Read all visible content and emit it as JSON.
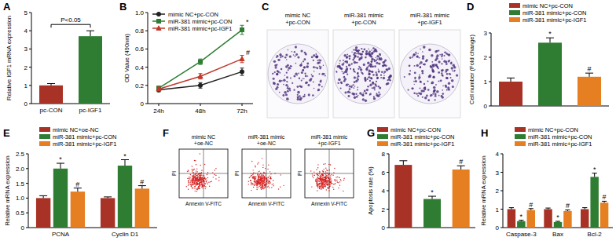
{
  "chart_data": [
    {
      "type": "bar",
      "title": "A",
      "y_label": "Relative IGF1 mRNA expression",
      "categories": [
        "pc-CON",
        "pc-IGF1"
      ],
      "values": [
        1.0,
        3.7
      ],
      "errors": [
        0.1,
        0.3
      ],
      "colors": [
        "#a93226",
        "#2e7d32"
      ],
      "ylim": [
        0,
        5
      ],
      "yticks": [
        0,
        1,
        2,
        3,
        4,
        5
      ],
      "annotation": "P<0.05"
    },
    {
      "type": "line",
      "title": "B",
      "y_label": "OD Value (490nm)",
      "categories": [
        "24h",
        "48h",
        "72h"
      ],
      "ylim": [
        0,
        1
      ],
      "yticks": [
        0,
        0.2,
        0.4,
        0.6,
        0.8,
        {
          "value": 1,
          "label": "1.0"
        }
      ],
      "legend": "top-left",
      "series": [
        {
          "name": "mimic NC+pc-CON",
          "color": "#222222",
          "marker": "circle",
          "values": [
            0.15,
            0.2,
            0.35
          ],
          "errors": [
            0.02,
            0.03,
            0.04
          ]
        },
        {
          "name": "miR-381 mimic+pc-CON",
          "color": "#2e7d32",
          "marker": "square",
          "values": [
            0.17,
            0.46,
            0.81
          ],
          "errors": [
            0.02,
            0.03,
            0.05
          ],
          "annotations": [
            null,
            null,
            "*"
          ]
        },
        {
          "name": "miR-381 mimic+pc-IGF1",
          "color": "#c0392b",
          "marker": "triangle",
          "values": [
            0.16,
            0.3,
            0.49
          ],
          "errors": [
            0.02,
            0.03,
            0.04
          ],
          "annotations": [
            null,
            null,
            "#"
          ]
        }
      ]
    },
    {
      "type": "bar",
      "title": "D",
      "y_label": "Cell number (Fold change)",
      "categories": [
        "mimic NC+pc-CON",
        "miR-381 mimic+pc-CON",
        "miR-381 mimic+pc-IGF1"
      ],
      "values": [
        1.0,
        2.6,
        1.2
      ],
      "errors": [
        0.15,
        0.2,
        0.15
      ],
      "annotations": [
        null,
        "*",
        "#"
      ],
      "colors": [
        "#a93226",
        "#2e7d32",
        "#e67e22"
      ],
      "ylim": [
        0,
        3
      ],
      "yticks": [
        0,
        1,
        2,
        3
      ],
      "legend": "top",
      "tick_labels": "y"
    },
    {
      "type": "bar",
      "title": "E",
      "y_label": "Relative mRNA expression",
      "categories": [
        "PCNA",
        "Cyclin D1"
      ],
      "ylim": [
        0,
        2.5
      ],
      "yticks": [
        0,
        0.5,
        {
          "value": 1,
          "label": "1.0"
        },
        1.5,
        {
          "value": 2,
          "label": "2.0"
        },
        2.5
      ],
      "legend": "top",
      "series": [
        {
          "name": "mimic NC+oe-NC",
          "color": "#a93226",
          "values": [
            1.0,
            1.0
          ],
          "errors": [
            0.08,
            0.04
          ]
        },
        {
          "name": "miR-381 mimic+pc-CON",
          "color": "#2e7d32",
          "values": [
            2.0,
            2.1
          ],
          "errors": [
            0.18,
            0.2
          ],
          "annotations": [
            "*",
            "*"
          ]
        },
        {
          "name": "miR-381 mimic+pc-IGF1",
          "color": "#e67e22",
          "values": [
            1.22,
            1.32
          ],
          "errors": [
            0.12,
            0.1
          ],
          "annotations": [
            "#",
            "#"
          ]
        }
      ]
    },
    {
      "type": "bar",
      "title": "G",
      "y_label": "Apoptosis rate (%)",
      "categories": [
        "mimic NC+pc-CON",
        "miR-381 mimic+pc-CON",
        "miR-381 mimic+pc-IGF1"
      ],
      "values": [
        6.8,
        3.1,
        6.3
      ],
      "errors": [
        0.45,
        0.3,
        0.4
      ],
      "annotations": [
        null,
        "*",
        "#"
      ],
      "colors": [
        "#a93226",
        "#2e7d32",
        "#e67e22"
      ],
      "ylim": [
        0,
        8
      ],
      "yticks": [
        0,
        2,
        4,
        6,
        8
      ],
      "legend": "top",
      "tick_labels": "y"
    },
    {
      "type": "bar",
      "title": "H",
      "y_label": "Relative mRNA expression",
      "categories": [
        "Caspase-3",
        "Bax",
        "Bcl-2"
      ],
      "ylim": [
        0,
        4
      ],
      "yticks": [
        0,
        1,
        2,
        3,
        4
      ],
      "legend": "top",
      "series": [
        {
          "name": "mimic NC+pc-CON",
          "color": "#a93226",
          "values": [
            1.0,
            1.0,
            1.0
          ],
          "errors": [
            0.08,
            0.06,
            0.08
          ]
        },
        {
          "name": "miR-381 mimic+pc-CON",
          "color": "#2e7d32",
          "values": [
            0.35,
            0.3,
            2.75
          ],
          "errors": [
            0.05,
            0.04,
            0.2
          ],
          "annotations": [
            "*",
            "*",
            "*"
          ]
        },
        {
          "name": "miR-381 mimic+pc-IGF1",
          "color": "#e67e22",
          "values": [
            0.95,
            0.9,
            1.35
          ],
          "errors": [
            0.08,
            0.06,
            0.08
          ],
          "annotations": [
            "#",
            "#",
            "#"
          ]
        }
      ]
    }
  ],
  "panels": [
    {
      "title": "C",
      "captions": [
        [
          "mimic NC",
          "+pc-CON"
        ],
        [
          "miR-381 mimic",
          "+pc-CON"
        ],
        [
          "miR-381 mimic",
          "+pc-IGF1"
        ]
      ]
    },
    {
      "title": "F",
      "captions": [
        [
          "mimic NC",
          "+oe-NC"
        ],
        [
          "miR-381 mimic",
          "+oe-NC"
        ],
        [
          "miR-381 mimic",
          "+pc-IGF1"
        ]
      ],
      "x_label": "Annexin V-FITC",
      "y_label": "PI"
    }
  ]
}
